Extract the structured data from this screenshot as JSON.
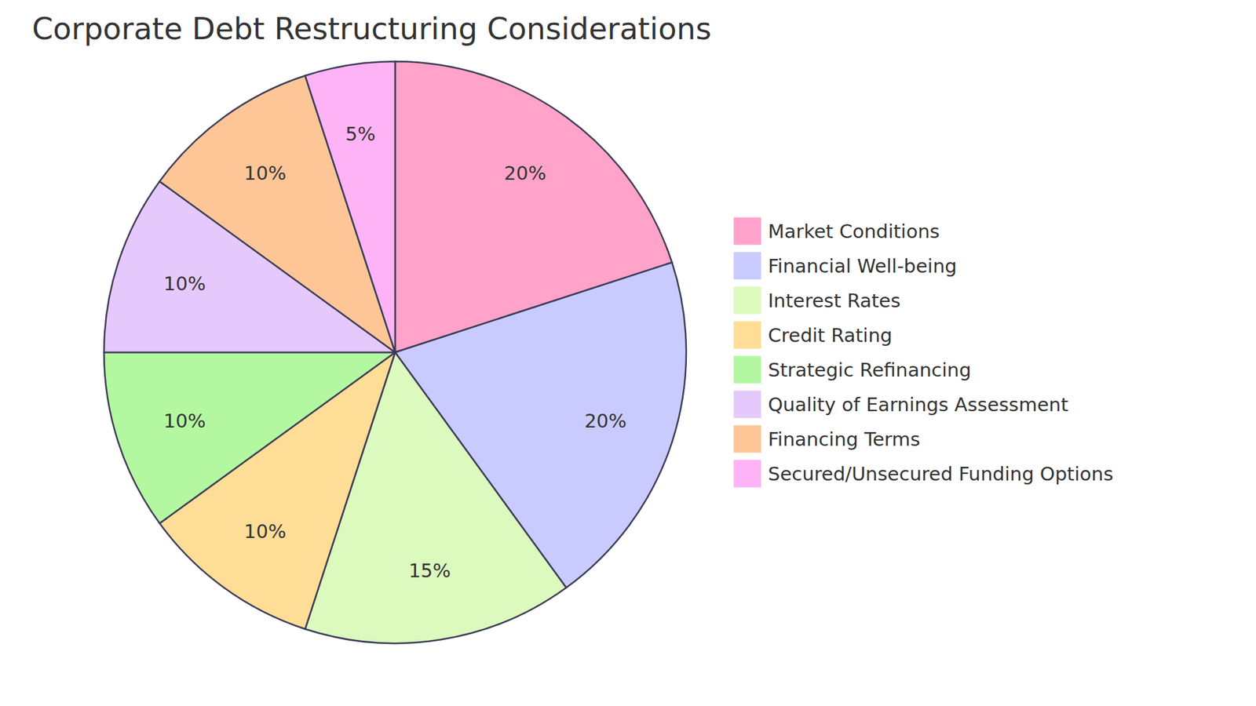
{
  "chart_data": {
    "type": "pie",
    "title": "Corporate Debt Restructuring Considerations",
    "categories": [
      "Market Conditions",
      "Financial Well-being",
      "Interest Rates",
      "Credit Rating",
      "Strategic Refinancing",
      "Quality of Earnings Assessment",
      "Financing Terms",
      "Secured/Unsecured Funding Options"
    ],
    "values": [
      20,
      20,
      15,
      10,
      10,
      10,
      10,
      5
    ],
    "value_labels": [
      "20%",
      "20%",
      "15%",
      "10%",
      "10%",
      "10%",
      "10%",
      "5%"
    ],
    "colors": [
      "#ffa3ca",
      "#c9cbff",
      "#dcf9be",
      "#fedd96",
      "#b3f8a1",
      "#e6c9fc",
      "#fec697",
      "#ffb3f7"
    ],
    "data_labels": true,
    "legend": "right"
  }
}
